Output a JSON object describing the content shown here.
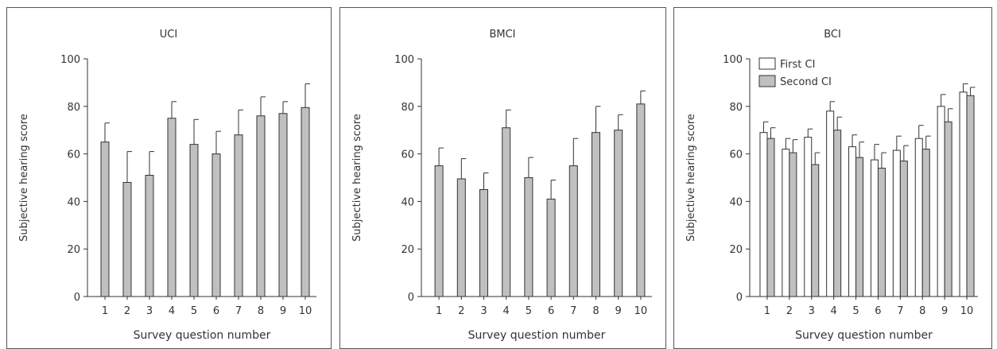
{
  "chart_data": [
    {
      "type": "bar",
      "title": "UCI",
      "xlabel": "Survey question number",
      "ylabel": "Subjective hearing score",
      "ylim": [
        0,
        100
      ],
      "yticks": [
        0,
        20,
        40,
        60,
        80,
        100
      ],
      "categories": [
        "1",
        "2",
        "3",
        "4",
        "5",
        "6",
        "7",
        "8",
        "9",
        "10"
      ],
      "series": [
        {
          "values": [
            65,
            48,
            51,
            75,
            64,
            60,
            68,
            76,
            77,
            79.5
          ],
          "errors": [
            8,
            13,
            10,
            7,
            10.5,
            9.5,
            10.5,
            8,
            5,
            10
          ]
        }
      ],
      "legend": null,
      "bar_color": "#c0c0c0"
    },
    {
      "type": "bar",
      "title": "BMCI",
      "xlabel": "Survey question number",
      "ylabel": "Subjective hearing score",
      "ylim": [
        0,
        100
      ],
      "yticks": [
        0,
        20,
        40,
        60,
        80,
        100
      ],
      "categories": [
        "1",
        "2",
        "3",
        "4",
        "5",
        "6",
        "7",
        "8",
        "9",
        "10"
      ],
      "series": [
        {
          "values": [
            55,
            49.5,
            45,
            71,
            50,
            41,
            55,
            69,
            70,
            81
          ],
          "errors": [
            7.5,
            8.5,
            7,
            7.5,
            8.5,
            8,
            11.5,
            11,
            6.5,
            5.5
          ]
        }
      ],
      "legend": null,
      "bar_color": "#c0c0c0"
    },
    {
      "type": "bar",
      "title": "BCI",
      "xlabel": "Survey question number",
      "ylabel": "Subjective hearing score",
      "ylim": [
        0,
        100
      ],
      "yticks": [
        0,
        20,
        40,
        60,
        80,
        100
      ],
      "categories": [
        "1",
        "2",
        "3",
        "4",
        "5",
        "6",
        "7",
        "8",
        "9",
        "10"
      ],
      "series": [
        {
          "name": "First CI",
          "color": "#ffffff",
          "values": [
            69,
            62,
            67,
            78,
            63,
            57.5,
            61.5,
            66.5,
            80,
            86
          ],
          "errors": [
            4.5,
            4.5,
            3.5,
            4,
            5,
            6.5,
            6,
            5.5,
            5,
            3.5
          ]
        },
        {
          "name": "Second CI",
          "color": "#c0c0c0",
          "values": [
            66.5,
            60.5,
            55.5,
            70,
            58.5,
            54,
            57,
            62,
            73.5,
            84.5
          ],
          "errors": [
            4.5,
            5.5,
            5,
            5.5,
            6.5,
            6.5,
            6.5,
            5.5,
            5.5,
            3.5
          ]
        }
      ],
      "legend": "top-left",
      "bar_color": "#c0c0c0"
    }
  ]
}
